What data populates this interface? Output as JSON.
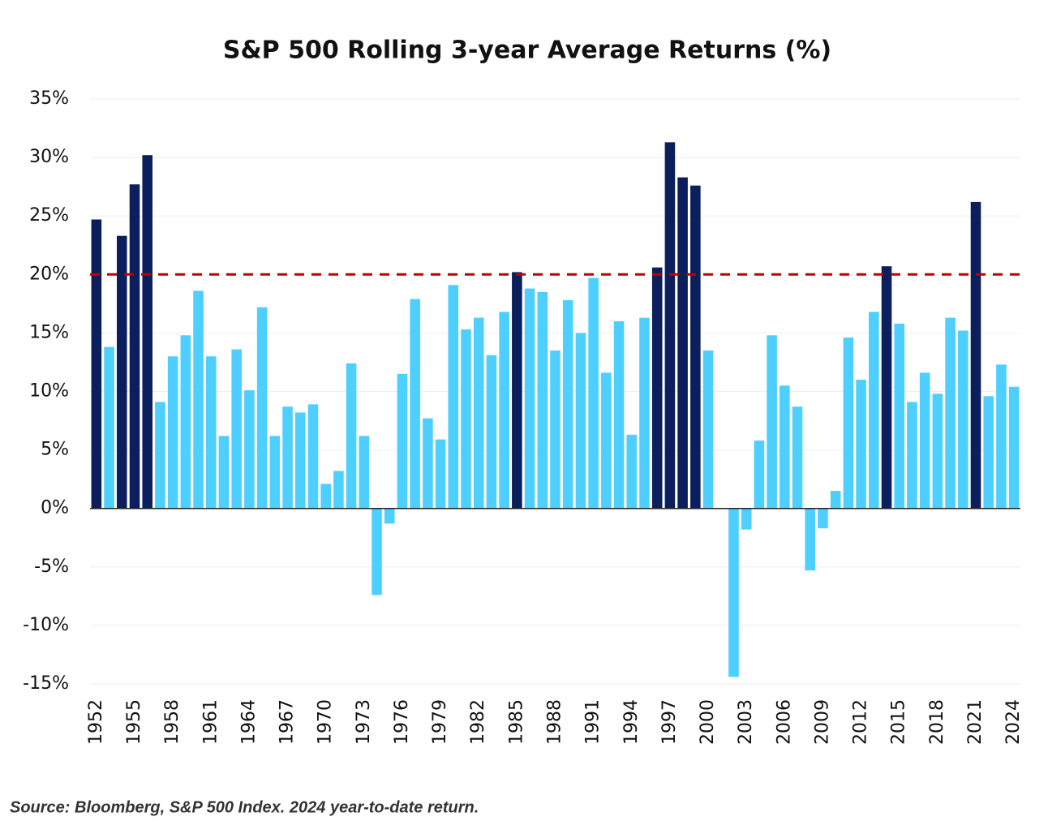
{
  "chart_data": {
    "type": "bar",
    "title": "S&P 500 Rolling 3-year Average Returns (%)",
    "note": "Source: Bloomberg, S&P 500 Index. 2024 year-to-date return.",
    "categories": [
      "1952",
      null,
      null,
      "1955",
      null,
      null,
      "1958",
      null,
      null,
      "1961",
      null,
      null,
      "1964",
      null,
      null,
      "1967",
      null,
      null,
      "1970",
      null,
      null,
      "1973",
      null,
      null,
      "1976",
      null,
      null,
      "1979",
      null,
      null,
      "1982",
      null,
      null,
      "1985",
      null,
      null,
      "1988",
      null,
      null,
      "1991",
      null,
      null,
      "1994",
      null,
      null,
      "1997",
      null,
      null,
      "2000",
      null,
      null,
      "2003",
      null,
      null,
      "2006",
      null,
      null,
      "2009",
      null,
      null,
      "2012",
      null,
      null,
      "2015",
      null,
      null,
      "2018",
      null,
      null,
      "2021",
      null,
      null,
      "2024"
    ],
    "values": [
      24.7,
      13.8,
      23.3,
      27.7,
      30.2,
      9.1,
      13.0,
      14.8,
      18.6,
      13.0,
      6.2,
      13.6,
      10.1,
      17.2,
      6.2,
      8.7,
      8.2,
      8.9,
      2.1,
      3.2,
      12.4,
      6.2,
      -7.4,
      -1.3,
      11.5,
      17.9,
      7.7,
      5.9,
      19.1,
      15.3,
      16.3,
      13.1,
      16.8,
      20.2,
      18.8,
      18.5,
      13.5,
      17.8,
      15.0,
      19.7,
      11.6,
      16.0,
      6.3,
      16.3,
      20.6,
      31.3,
      28.3,
      27.6,
      13.5,
      0,
      -14.4,
      -1.8,
      5.8,
      14.8,
      10.5,
      8.7,
      -5.3,
      -1.7,
      1.5,
      14.6,
      11.0,
      16.8,
      20.7,
      15.8,
      9.1,
      11.6,
      9.8,
      16.3,
      15.2,
      26.2,
      9.6,
      12.3,
      10.4
    ],
    "color": "#4dcfff",
    "highlight_color": "#0b1f5c",
    "reference_line": {
      "value": 20,
      "color": "#c00000"
    },
    "ylim": [
      -15,
      35
    ],
    "yticks": [
      {
        "value": -15,
        "label": "-15%"
      },
      {
        "value": -10,
        "label": "-10%"
      },
      {
        "value": -5,
        "label": "-5%"
      },
      {
        "value": 0,
        "label": "0%"
      },
      {
        "value": 5,
        "label": "5%"
      },
      {
        "value": 10,
        "label": "10%"
      },
      {
        "value": 15,
        "label": "15%"
      },
      {
        "value": 20,
        "label": "20%"
      },
      {
        "value": 25,
        "label": "25%"
      },
      {
        "value": 30,
        "label": "30%"
      },
      {
        "value": 35,
        "label": "35%"
      }
    ],
    "grid": true
  }
}
